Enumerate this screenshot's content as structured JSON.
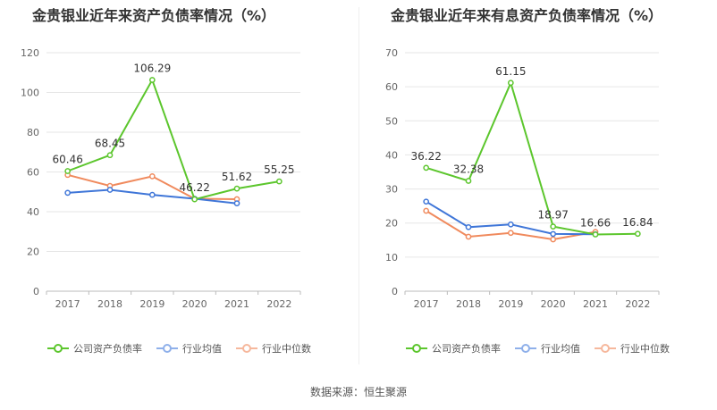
{
  "chart_data": [
    {
      "type": "line",
      "title": "金贵银业近年来资产负债率情况（%）",
      "categories": [
        "2017",
        "2018",
        "2019",
        "2020",
        "2021",
        "2022"
      ],
      "ylim": [
        0,
        120
      ],
      "yticks": [
        0,
        20,
        40,
        60,
        80,
        100,
        120
      ],
      "series": [
        {
          "name": "公司资产负债率",
          "color": "#5cc62d",
          "values": [
            60.46,
            68.45,
            106.29,
            46.22,
            51.62,
            55.25
          ],
          "labels": [
            "60.46",
            "68.45",
            "106.29",
            "46.22",
            "51.62",
            "55.25"
          ]
        },
        {
          "name": "行业均值",
          "color": "#3f76d8",
          "values": [
            49.5,
            51,
            48.5,
            46.5,
            44.2,
            null
          ]
        },
        {
          "name": "行业中位数",
          "color": "#f08a5d",
          "values": [
            58.5,
            53,
            57.8,
            46.5,
            46.3,
            null
          ]
        }
      ]
    },
    {
      "type": "line",
      "title": "金贵银业近年来有息资产负债率情况（%）",
      "categories": [
        "2017",
        "2018",
        "2019",
        "2020",
        "2021",
        "2022"
      ],
      "ylim": [
        0,
        70
      ],
      "yticks": [
        0,
        10,
        20,
        30,
        40,
        50,
        60,
        70
      ],
      "series": [
        {
          "name": "公司资产负债率",
          "color": "#5cc62d",
          "values": [
            36.22,
            32.38,
            61.15,
            18.97,
            16.66,
            16.84
          ],
          "labels": [
            "36.22",
            "32.38",
            "61.15",
            "18.97",
            "16.66",
            "16.84"
          ]
        },
        {
          "name": "行业均值",
          "color": "#3f76d8",
          "values": [
            26.3,
            18.8,
            19.6,
            16.8,
            16.7,
            null
          ]
        },
        {
          "name": "行业中位数",
          "color": "#f08a5d",
          "values": [
            23.6,
            16,
            17.1,
            15.2,
            17.4,
            null
          ]
        }
      ]
    }
  ],
  "legend_colors": {
    "company": "#5cc62d",
    "mean": "#3f76d8",
    "median": "#f08a5d"
  },
  "source": "数据来源：恒生聚源"
}
